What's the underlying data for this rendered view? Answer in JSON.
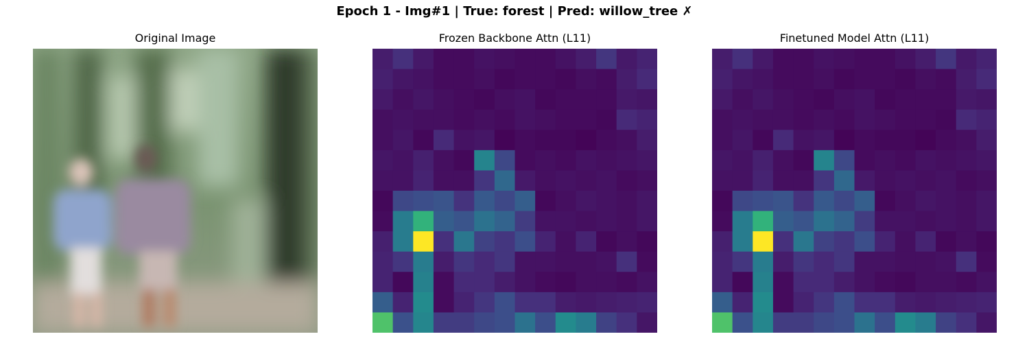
{
  "figure": {
    "suptitle": "Epoch 1 - Img#1 | True: forest | Pred: willow_tree ✗"
  },
  "chart_data": [
    {
      "type": "image",
      "title": "Original Image",
      "palette": {
        "forest_light": "#a9bca3",
        "forest_mid": "#6f8a66",
        "forest_dark": "#2f3a2a",
        "shirt_blue": "#8fa4cc",
        "shirt_mauve": "#9a8aa0",
        "skin": "#d9b8a8",
        "ground": "#b8a99a"
      }
    },
    {
      "type": "heatmap",
      "title": "Frozen Backbone Attn (L11)",
      "colormap": "viridis",
      "rows": 14,
      "cols": 14,
      "vmin": 0,
      "vmax": 1,
      "values": [
        [
          0.08,
          0.14,
          0.07,
          0.03,
          0.03,
          0.05,
          0.04,
          0.03,
          0.03,
          0.05,
          0.08,
          0.16,
          0.07,
          0.1
        ],
        [
          0.09,
          0.06,
          0.05,
          0.03,
          0.03,
          0.04,
          0.02,
          0.03,
          0.03,
          0.02,
          0.04,
          0.03,
          0.08,
          0.12
        ],
        [
          0.07,
          0.04,
          0.06,
          0.04,
          0.03,
          0.02,
          0.04,
          0.05,
          0.02,
          0.03,
          0.03,
          0.03,
          0.07,
          0.06
        ],
        [
          0.04,
          0.05,
          0.04,
          0.04,
          0.03,
          0.04,
          0.03,
          0.05,
          0.04,
          0.03,
          0.03,
          0.02,
          0.12,
          0.1
        ],
        [
          0.04,
          0.06,
          0.02,
          0.12,
          0.05,
          0.06,
          0.01,
          0.03,
          0.02,
          0.02,
          0.01,
          0.03,
          0.04,
          0.08
        ],
        [
          0.06,
          0.05,
          0.09,
          0.04,
          0.02,
          0.45,
          0.22,
          0.03,
          0.04,
          0.03,
          0.05,
          0.04,
          0.05,
          0.06
        ],
        [
          0.05,
          0.05,
          0.1,
          0.04,
          0.04,
          0.16,
          0.34,
          0.07,
          0.04,
          0.05,
          0.04,
          0.05,
          0.03,
          0.04
        ],
        [
          0.02,
          0.22,
          0.24,
          0.26,
          0.15,
          0.28,
          0.22,
          0.3,
          0.02,
          0.04,
          0.06,
          0.05,
          0.04,
          0.06
        ],
        [
          0.03,
          0.42,
          0.65,
          0.3,
          0.26,
          0.38,
          0.32,
          0.18,
          0.05,
          0.05,
          0.04,
          0.05,
          0.04,
          0.06
        ],
        [
          0.09,
          0.42,
          1.0,
          0.14,
          0.4,
          0.2,
          0.16,
          0.24,
          0.1,
          0.04,
          0.1,
          0.02,
          0.04,
          0.02
        ],
        [
          0.1,
          0.16,
          0.42,
          0.08,
          0.16,
          0.12,
          0.16,
          0.05,
          0.05,
          0.04,
          0.04,
          0.05,
          0.14,
          0.03
        ],
        [
          0.1,
          0.02,
          0.44,
          0.03,
          0.12,
          0.12,
          0.08,
          0.05,
          0.03,
          0.02,
          0.04,
          0.04,
          0.03,
          0.05
        ],
        [
          0.3,
          0.1,
          0.48,
          0.03,
          0.1,
          0.16,
          0.24,
          0.14,
          0.14,
          0.08,
          0.07,
          0.08,
          0.09,
          0.1
        ],
        [
          0.72,
          0.25,
          0.46,
          0.18,
          0.18,
          0.22,
          0.24,
          0.38,
          0.24,
          0.48,
          0.42,
          0.2,
          0.14,
          0.06
        ]
      ]
    },
    {
      "type": "heatmap",
      "title": "Finetuned Model Attn (L11)",
      "colormap": "viridis",
      "rows": 14,
      "cols": 14,
      "vmin": 0,
      "vmax": 1,
      "values": [
        [
          0.08,
          0.14,
          0.07,
          0.03,
          0.03,
          0.05,
          0.04,
          0.03,
          0.03,
          0.05,
          0.08,
          0.16,
          0.07,
          0.1
        ],
        [
          0.09,
          0.06,
          0.05,
          0.03,
          0.03,
          0.04,
          0.02,
          0.03,
          0.03,
          0.02,
          0.04,
          0.03,
          0.08,
          0.12
        ],
        [
          0.07,
          0.04,
          0.06,
          0.04,
          0.03,
          0.02,
          0.04,
          0.05,
          0.02,
          0.03,
          0.03,
          0.03,
          0.07,
          0.06
        ],
        [
          0.04,
          0.05,
          0.04,
          0.04,
          0.03,
          0.04,
          0.03,
          0.05,
          0.04,
          0.03,
          0.03,
          0.02,
          0.12,
          0.1
        ],
        [
          0.04,
          0.06,
          0.02,
          0.12,
          0.05,
          0.06,
          0.01,
          0.03,
          0.02,
          0.02,
          0.01,
          0.03,
          0.04,
          0.08
        ],
        [
          0.06,
          0.05,
          0.09,
          0.04,
          0.02,
          0.45,
          0.22,
          0.03,
          0.04,
          0.03,
          0.05,
          0.04,
          0.05,
          0.06
        ],
        [
          0.05,
          0.05,
          0.1,
          0.04,
          0.04,
          0.16,
          0.34,
          0.07,
          0.04,
          0.05,
          0.04,
          0.05,
          0.03,
          0.04
        ],
        [
          0.02,
          0.22,
          0.24,
          0.26,
          0.15,
          0.28,
          0.22,
          0.3,
          0.02,
          0.04,
          0.06,
          0.05,
          0.04,
          0.06
        ],
        [
          0.03,
          0.42,
          0.65,
          0.3,
          0.26,
          0.38,
          0.32,
          0.18,
          0.05,
          0.05,
          0.04,
          0.05,
          0.04,
          0.06
        ],
        [
          0.09,
          0.42,
          1.0,
          0.14,
          0.4,
          0.2,
          0.16,
          0.24,
          0.1,
          0.04,
          0.1,
          0.02,
          0.04,
          0.02
        ],
        [
          0.1,
          0.16,
          0.42,
          0.08,
          0.16,
          0.12,
          0.16,
          0.05,
          0.05,
          0.04,
          0.04,
          0.05,
          0.14,
          0.03
        ],
        [
          0.1,
          0.02,
          0.44,
          0.03,
          0.12,
          0.12,
          0.08,
          0.05,
          0.03,
          0.02,
          0.04,
          0.04,
          0.03,
          0.05
        ],
        [
          0.3,
          0.1,
          0.48,
          0.03,
          0.1,
          0.16,
          0.24,
          0.14,
          0.14,
          0.08,
          0.07,
          0.08,
          0.09,
          0.1
        ],
        [
          0.72,
          0.25,
          0.46,
          0.18,
          0.18,
          0.22,
          0.24,
          0.38,
          0.24,
          0.48,
          0.42,
          0.2,
          0.14,
          0.06
        ]
      ]
    }
  ]
}
